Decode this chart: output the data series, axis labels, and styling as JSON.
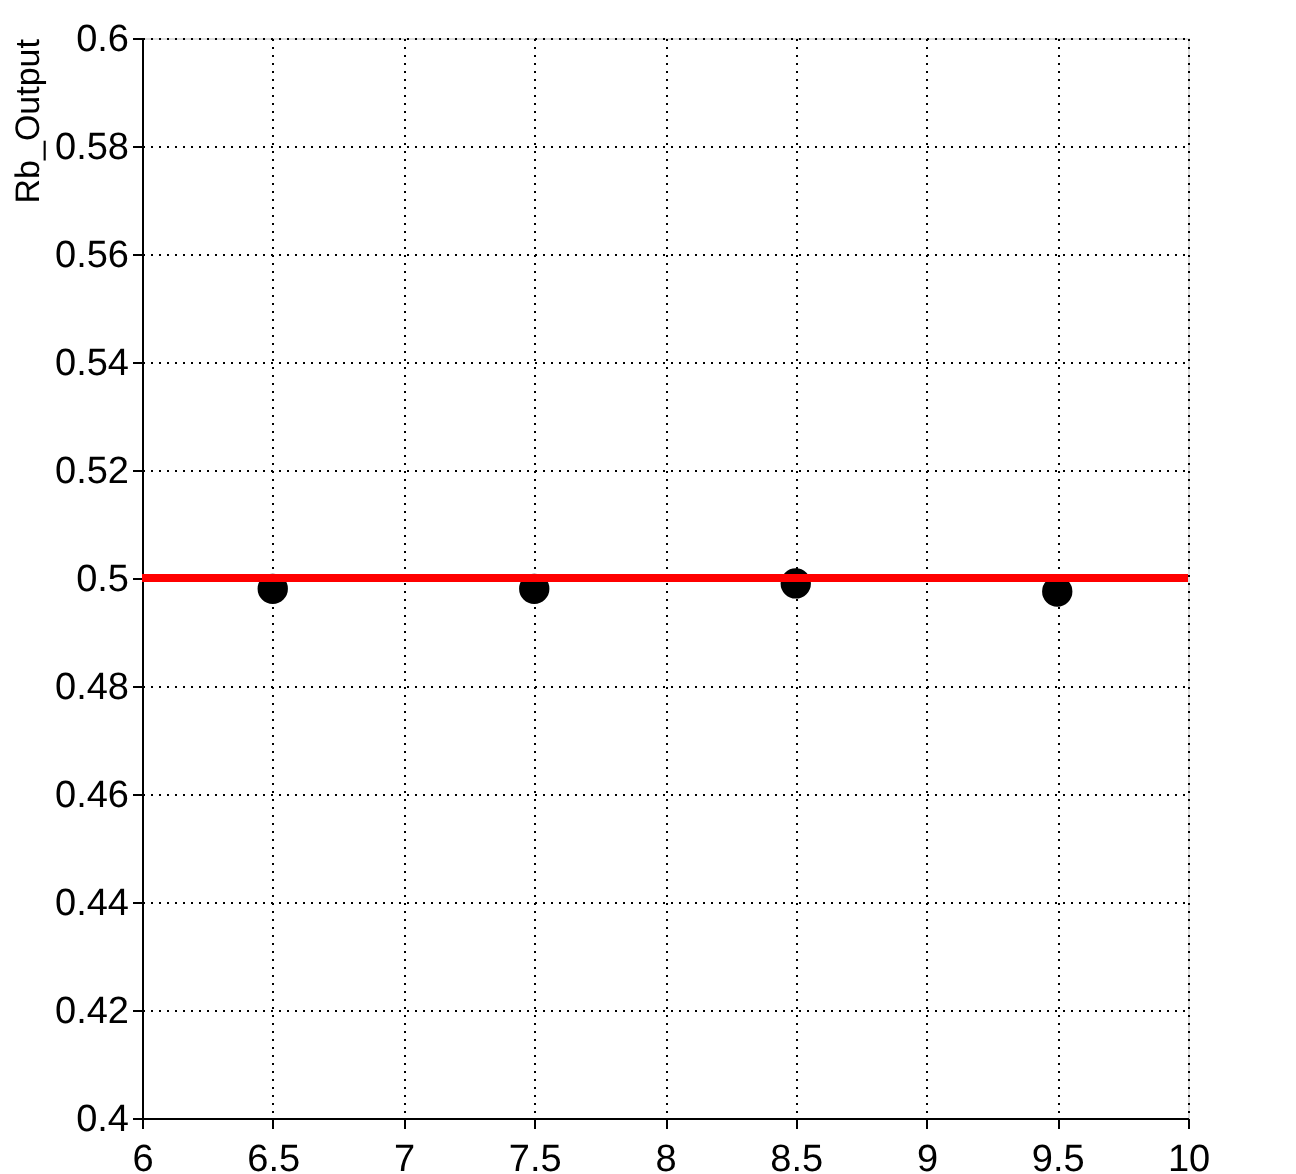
{
  "chart_data": {
    "type": "scatter",
    "ylabel": "Rb_Output",
    "x": [
      6.5,
      7.5,
      8.5,
      9.5
    ],
    "series": [
      {
        "color": "#000000",
        "values": [
          0.498,
          0.498,
          0.499,
          0.4975
        ]
      }
    ],
    "xlim": [
      6,
      10
    ],
    "xticks": [
      6,
      6.5,
      7,
      7.5,
      8,
      8.5,
      9,
      9.5,
      10
    ],
    "ylim": [
      0.4,
      0.6
    ],
    "yticks": [
      0.4,
      0.42,
      0.44,
      0.46,
      0.48,
      0.5,
      0.52,
      0.54,
      0.56,
      0.58,
      0.6
    ],
    "ref_lines": [
      {
        "axis": "y",
        "value": 0.5,
        "color": "#ff0000"
      }
    ],
    "grid": true,
    "marker": "circle"
  }
}
